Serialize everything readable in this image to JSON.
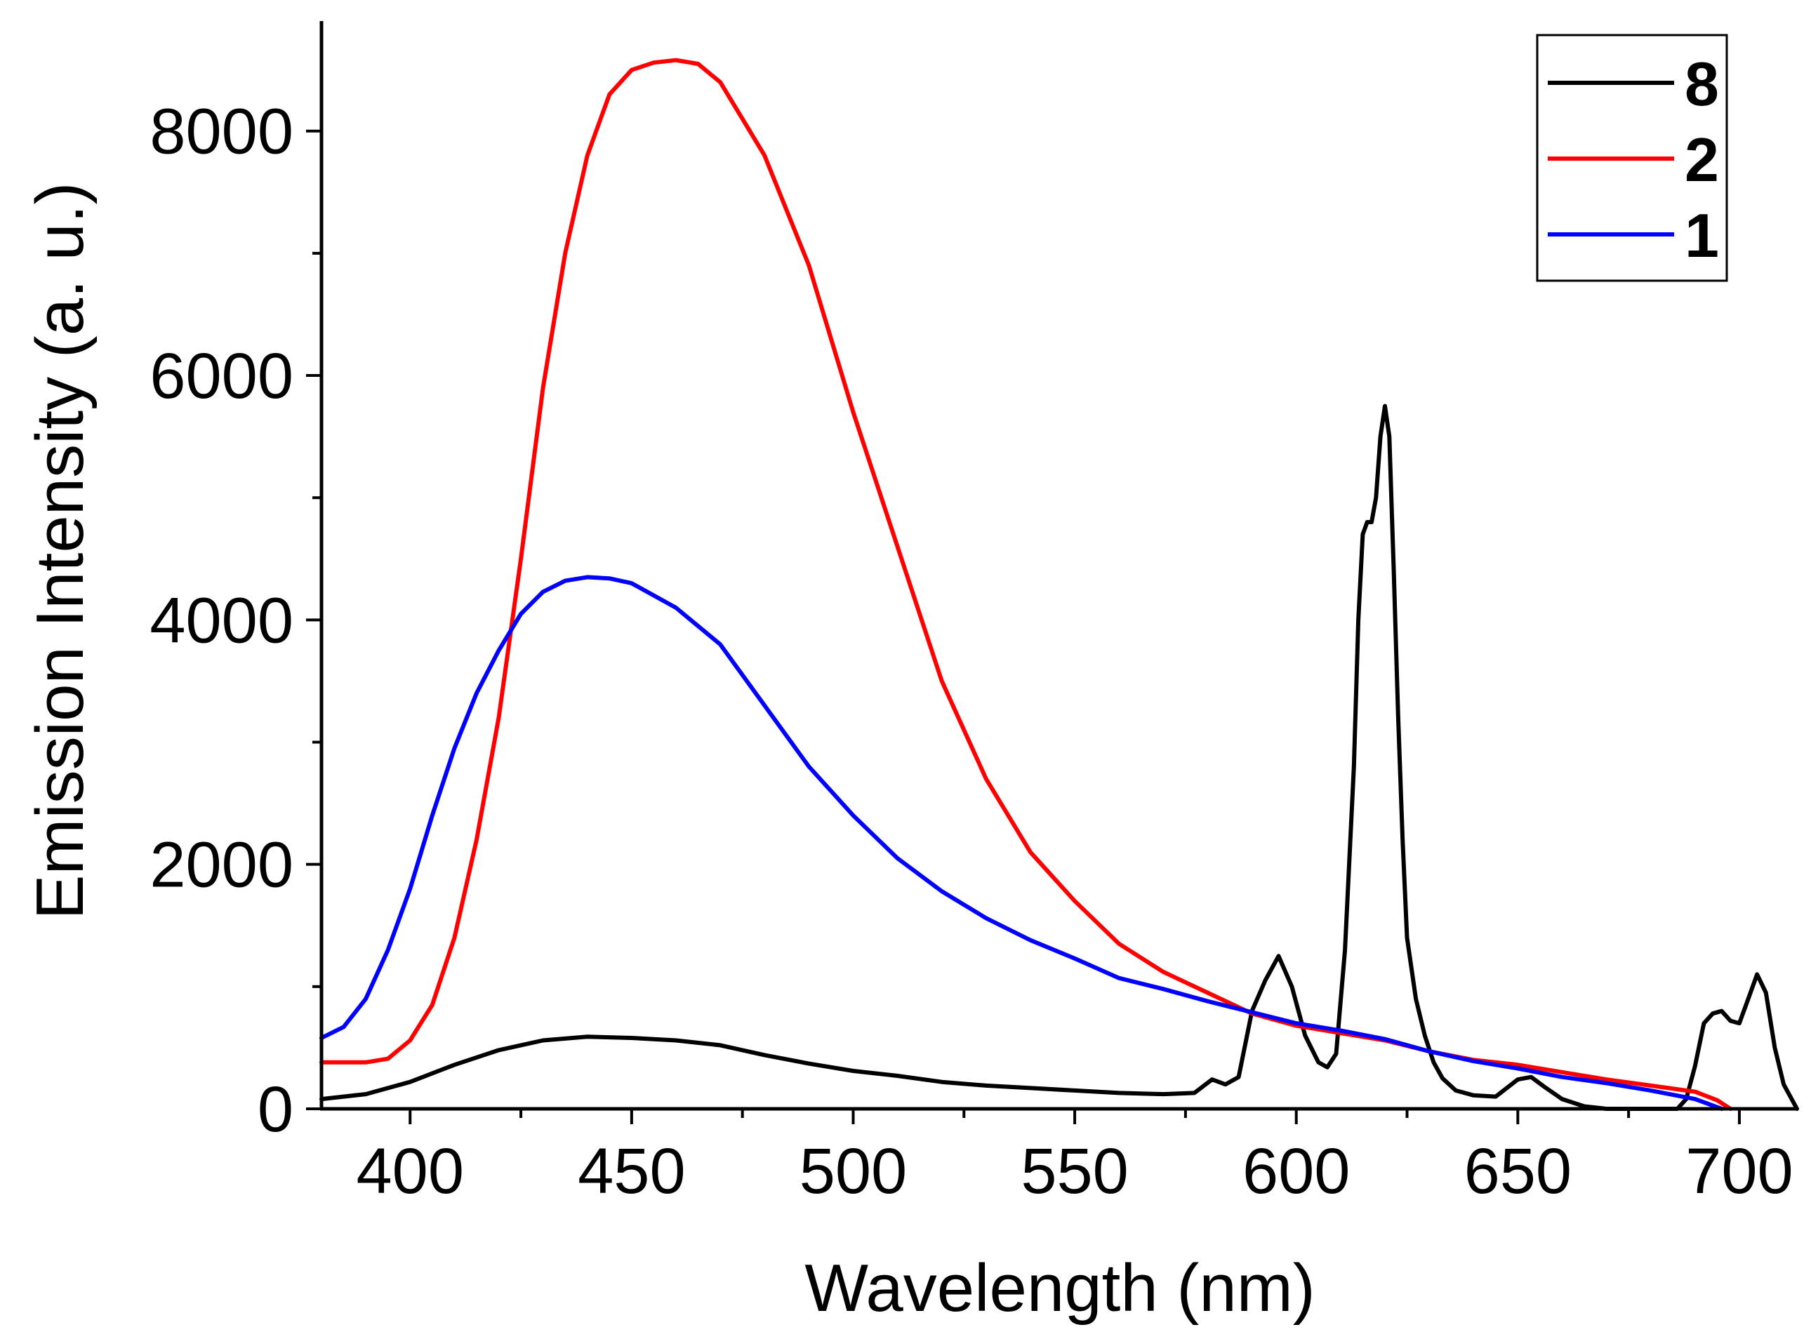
{
  "chart_data": {
    "type": "line",
    "title": "",
    "xlabel": "Wavelength (nm)",
    "ylabel": "Emission Intensity (a. u.)",
    "xlim": [
      380,
      713
    ],
    "ylim": [
      0,
      8900
    ],
    "x_ticks": [
      400,
      450,
      500,
      550,
      600,
      650,
      700
    ],
    "x_tick_labels": [
      "400",
      "450",
      "500",
      "550",
      "600",
      "650",
      "700"
    ],
    "x_minor_step": 25,
    "y_ticks": [
      0,
      2000,
      4000,
      6000,
      8000
    ],
    "y_tick_labels": [
      "0",
      "2000",
      "4000",
      "6000",
      "8000"
    ],
    "y_minor_step": 1000,
    "grid": false,
    "legend_position": "top-right",
    "series": [
      {
        "name": "8",
        "color": "#000000",
        "x": [
          380,
          390,
          400,
          410,
          420,
          430,
          440,
          450,
          460,
          470,
          480,
          490,
          500,
          510,
          520,
          530,
          540,
          550,
          560,
          570,
          577,
          581,
          584,
          587,
          590,
          593,
          596,
          599,
          602,
          605,
          607,
          609,
          611,
          613,
          614,
          615,
          616,
          617,
          618,
          619,
          620,
          621,
          622,
          623,
          624,
          625,
          627,
          629,
          631,
          633,
          636,
          640,
          645,
          650,
          653,
          656,
          660,
          665,
          670,
          680,
          686,
          688,
          690,
          692,
          694,
          696,
          698,
          700,
          702,
          704,
          706,
          708,
          710,
          713
        ],
        "y": [
          80,
          120,
          220,
          360,
          480,
          560,
          590,
          580,
          560,
          520,
          440,
          370,
          310,
          270,
          220,
          190,
          170,
          150,
          130,
          120,
          130,
          240,
          200,
          260,
          800,
          1050,
          1250,
          1000,
          600,
          380,
          340,
          450,
          1300,
          2800,
          4000,
          4700,
          4800,
          4800,
          5000,
          5500,
          5750,
          5500,
          4400,
          3200,
          2200,
          1400,
          900,
          600,
          380,
          250,
          150,
          110,
          100,
          240,
          260,
          180,
          80,
          20,
          0,
          0,
          0,
          80,
          350,
          700,
          780,
          800,
          720,
          700,
          900,
          1100,
          950,
          500,
          200,
          0
        ]
      },
      {
        "name": "2",
        "color": "#ff0000",
        "x": [
          380,
          390,
          395,
          400,
          405,
          410,
          415,
          420,
          425,
          430,
          435,
          440,
          445,
          450,
          455,
          460,
          465,
          470,
          475,
          480,
          490,
          500,
          510,
          520,
          530,
          540,
          550,
          560,
          570,
          580,
          590,
          600,
          610,
          620,
          630,
          640,
          650,
          660,
          670,
          680,
          690,
          695,
          698
        ],
        "y": [
          380,
          380,
          410,
          560,
          850,
          1400,
          2200,
          3200,
          4500,
          5900,
          7000,
          7800,
          8300,
          8500,
          8560,
          8580,
          8550,
          8400,
          8100,
          7800,
          6900,
          5700,
          4600,
          3500,
          2700,
          2100,
          1700,
          1350,
          1120,
          950,
          780,
          680,
          620,
          560,
          470,
          400,
          360,
          300,
          240,
          190,
          140,
          70,
          0
        ]
      },
      {
        "name": "1",
        "color": "#0000ff",
        "x": [
          380,
          385,
          390,
          395,
          400,
          405,
          410,
          415,
          420,
          425,
          430,
          435,
          440,
          445,
          450,
          455,
          460,
          465,
          470,
          480,
          490,
          500,
          510,
          520,
          530,
          540,
          550,
          560,
          570,
          580,
          590,
          600,
          610,
          620,
          630,
          640,
          650,
          660,
          670,
          680,
          690,
          696
        ],
        "y": [
          580,
          670,
          900,
          1300,
          1800,
          2400,
          2950,
          3400,
          3750,
          4050,
          4230,
          4320,
          4350,
          4340,
          4300,
          4200,
          4100,
          3950,
          3800,
          3300,
          2800,
          2400,
          2050,
          1780,
          1560,
          1380,
          1230,
          1070,
          980,
          880,
          790,
          700,
          640,
          570,
          470,
          390,
          330,
          260,
          210,
          150,
          80,
          0
        ]
      }
    ]
  }
}
